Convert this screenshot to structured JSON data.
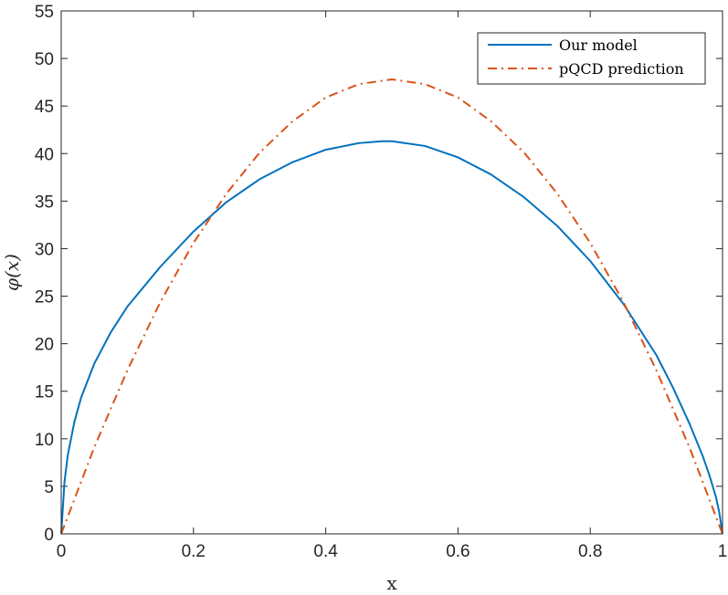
{
  "chart_data": {
    "type": "line",
    "xlabel": "x",
    "ylabel": "φ(x)",
    "xlim": [
      0,
      1
    ],
    "ylim": [
      0,
      55
    ],
    "xticks": [
      0,
      0.2,
      0.4,
      0.6,
      0.8,
      1
    ],
    "xtick_labels": [
      "0",
      "0.2",
      "0.4",
      "0.6",
      "0.8",
      "1"
    ],
    "yticks": [
      0,
      5,
      10,
      15,
      20,
      25,
      30,
      35,
      40,
      45,
      50,
      55
    ],
    "ytick_labels": [
      "0",
      "5",
      "10",
      "15",
      "20",
      "25",
      "30",
      "35",
      "40",
      "45",
      "50",
      "55"
    ],
    "grid": false,
    "legend_position": "top-right",
    "series": [
      {
        "name": "Our model",
        "color": "#0072BD",
        "style": "solid",
        "x": [
          0,
          0.005,
          0.01,
          0.02,
          0.03,
          0.05,
          0.075,
          0.1,
          0.15,
          0.2,
          0.25,
          0.3,
          0.35,
          0.4,
          0.45,
          0.486,
          0.5,
          0.55,
          0.6,
          0.65,
          0.7,
          0.75,
          0.8,
          0.85,
          0.9,
          0.925,
          0.95,
          0.97,
          0.98,
          0.99,
          0.995,
          1
        ],
        "y": [
          0,
          5.5,
          8.3,
          11.8,
          14.3,
          17.9,
          21.2,
          23.9,
          28.1,
          31.8,
          34.9,
          37.3,
          39.1,
          40.4,
          41.1,
          41.3,
          41.3,
          40.8,
          39.6,
          37.8,
          35.4,
          32.4,
          28.7,
          24.2,
          18.8,
          15.4,
          11.6,
          8.2,
          6.2,
          3.9,
          2.3,
          0
        ]
      },
      {
        "name": "pQCD prediction",
        "color": "#D95319",
        "style": "dashdot",
        "x": [
          0,
          0.05,
          0.1,
          0.15,
          0.2,
          0.25,
          0.3,
          0.35,
          0.4,
          0.45,
          0.5,
          0.55,
          0.6,
          0.65,
          0.7,
          0.75,
          0.8,
          0.85,
          0.9,
          0.95,
          1
        ],
        "y": [
          0,
          9.1,
          17.2,
          24.4,
          30.6,
          35.8,
          40.1,
          43.4,
          45.9,
          47.3,
          47.8,
          47.3,
          45.9,
          43.4,
          40.1,
          35.8,
          30.6,
          24.4,
          17.2,
          9.1,
          0
        ]
      }
    ]
  }
}
